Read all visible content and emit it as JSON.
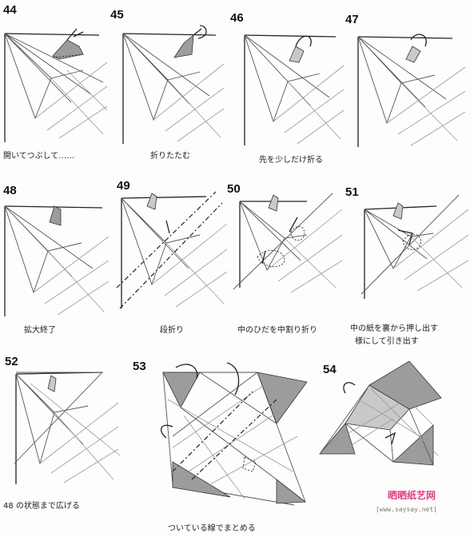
{
  "steps": [
    {
      "number": "44",
      "caption": "開いてつぶして……"
    },
    {
      "number": "45",
      "caption": "折りたたむ"
    },
    {
      "number": "46",
      "caption": "先を少しだけ折る"
    },
    {
      "number": "47",
      "caption": ""
    },
    {
      "number": "48",
      "caption": "拡大終了"
    },
    {
      "number": "49",
      "caption": "段折り"
    },
    {
      "number": "50",
      "caption": "中のひだを中割り折り"
    },
    {
      "number": "51",
      "caption": "中の紙を裏から押し出す",
      "caption2": "様にして引き出す"
    },
    {
      "number": "52",
      "caption": "48 の状態まで広げる"
    },
    {
      "number": "53",
      "caption": "ついている線でまとめる"
    },
    {
      "number": "54",
      "caption": ""
    }
  ],
  "watermark": {
    "text": "晒晒纸艺网",
    "url": "[www.saysay.net]"
  }
}
